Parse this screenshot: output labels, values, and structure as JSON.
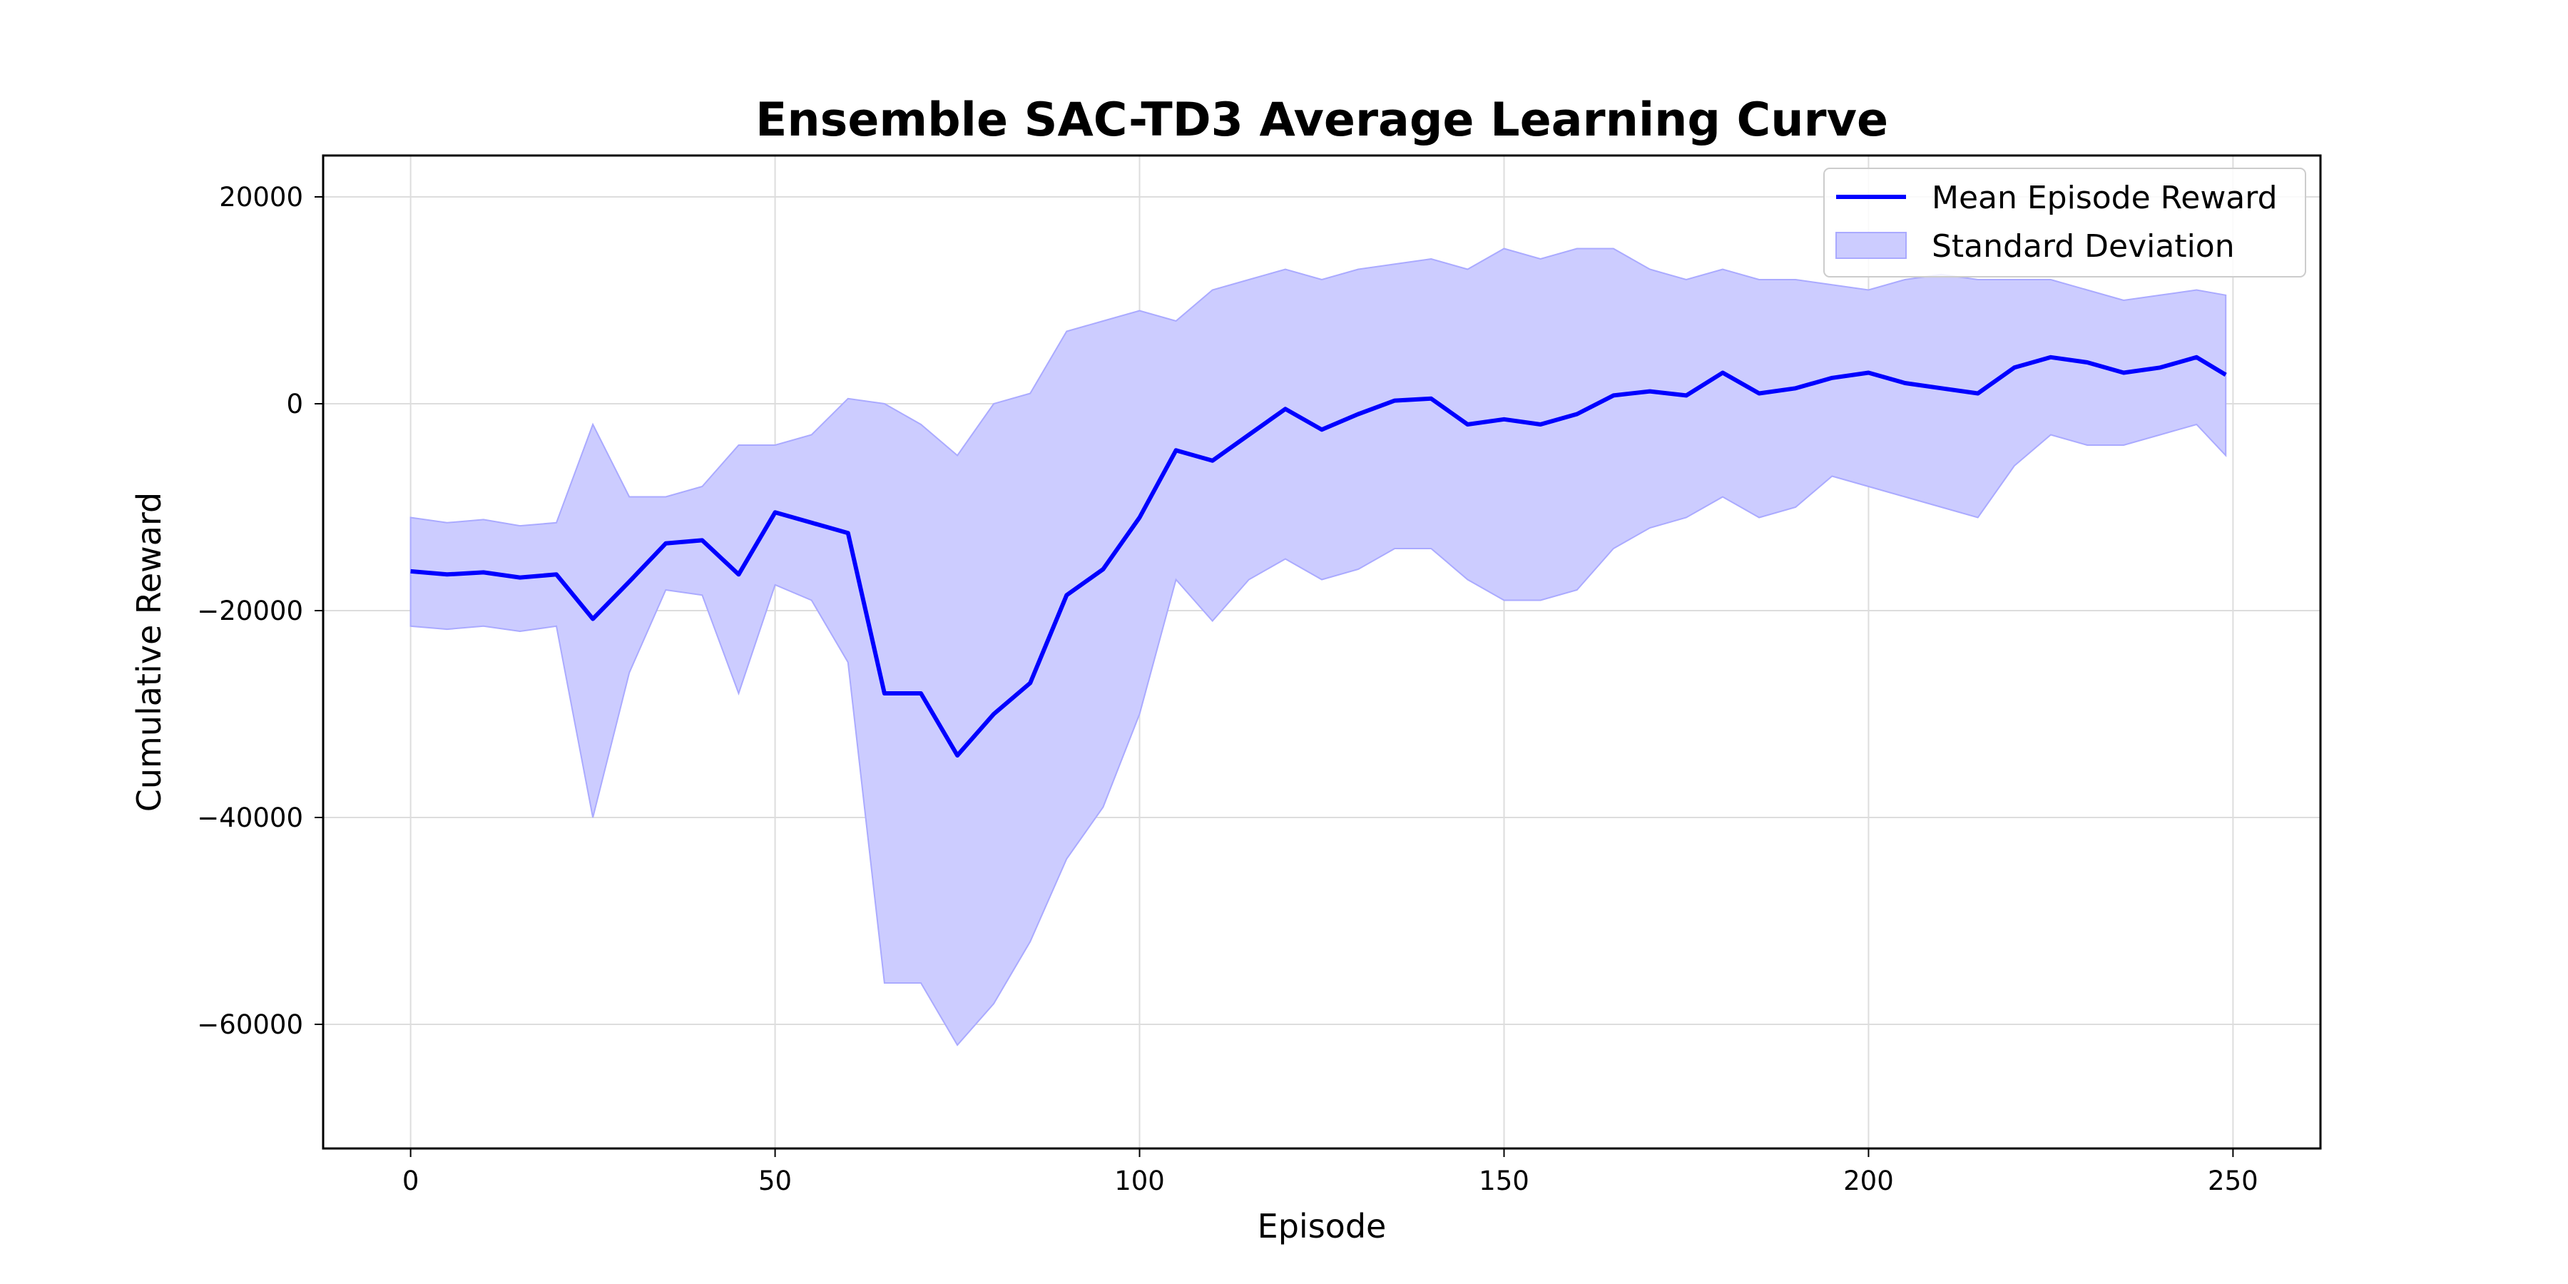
{
  "chart_data": {
    "type": "line",
    "title": "Ensemble SAC-TD3 Average Learning Curve",
    "xlabel": "Episode",
    "ylabel": "Cumulative Reward",
    "xlim": [
      -12,
      262
    ],
    "ylim": [
      -72000,
      24000
    ],
    "xticks": [
      0,
      50,
      100,
      150,
      200,
      250
    ],
    "yticks": [
      -60000,
      -40000,
      -20000,
      0,
      20000
    ],
    "xtick_labels": [
      "0",
      "50",
      "100",
      "150",
      "200",
      "250"
    ],
    "ytick_labels": [
      "−60000",
      "−40000",
      "−20000",
      "0",
      "20000"
    ],
    "grid": true,
    "legend_position": "top-right",
    "colors": {
      "line": "#0000ff",
      "band": "#ccccff",
      "band_edge": "#aaaaff",
      "grid": "#dddddd"
    },
    "series": [
      {
        "name": "Mean Episode Reward",
        "kind": "line",
        "x": [
          0,
          5,
          10,
          15,
          20,
          25,
          30,
          35,
          40,
          45,
          50,
          55,
          60,
          65,
          70,
          75,
          80,
          85,
          90,
          95,
          100,
          105,
          110,
          115,
          120,
          125,
          130,
          135,
          140,
          145,
          150,
          155,
          160,
          165,
          170,
          175,
          180,
          185,
          190,
          195,
          200,
          205,
          210,
          215,
          220,
          225,
          230,
          235,
          240,
          245,
          249
        ],
        "values": [
          -16200,
          -16500,
          -16300,
          -16800,
          -16500,
          -20800,
          -17200,
          -13500,
          -13200,
          -16500,
          -10500,
          -11500,
          -12500,
          -28000,
          -28000,
          -34000,
          -30000,
          -27000,
          -18500,
          -16000,
          -11000,
          -4500,
          -5500,
          -3000,
          -500,
          -2500,
          -1000,
          300,
          500,
          -2000,
          -1500,
          -2000,
          -1000,
          800,
          1200,
          800,
          3000,
          1000,
          1500,
          2500,
          3000,
          2000,
          1500,
          1000,
          3500,
          4500,
          4000,
          3000,
          3500,
          4500,
          2800
        ]
      },
      {
        "name": "Standard Deviation",
        "kind": "band",
        "x": [
          0,
          5,
          10,
          15,
          20,
          25,
          30,
          35,
          40,
          45,
          50,
          55,
          60,
          65,
          70,
          75,
          80,
          85,
          90,
          95,
          100,
          105,
          110,
          115,
          120,
          125,
          130,
          135,
          140,
          145,
          150,
          155,
          160,
          165,
          170,
          175,
          180,
          185,
          190,
          195,
          200,
          205,
          210,
          215,
          220,
          225,
          230,
          235,
          240,
          245,
          249
        ],
        "upper": [
          -11000,
          -11500,
          -11200,
          -11800,
          -11500,
          -2000,
          -9000,
          -9000,
          -8000,
          -4000,
          -4000,
          -3000,
          500,
          0,
          -2000,
          -5000,
          0,
          1000,
          7000,
          8000,
          9000,
          8000,
          11000,
          12000,
          13000,
          12000,
          13000,
          13500,
          14000,
          13000,
          15000,
          14000,
          15000,
          15000,
          13000,
          12000,
          13000,
          12000,
          12000,
          11500,
          11000,
          12000,
          12500,
          12000,
          12000,
          12000,
          11000,
          10000,
          10500,
          11000,
          10500
        ],
        "lower": [
          -21500,
          -21800,
          -21500,
          -22000,
          -21500,
          -40000,
          -26000,
          -18000,
          -18500,
          -28000,
          -17500,
          -19000,
          -25000,
          -56000,
          -56000,
          -62000,
          -58000,
          -52000,
          -44000,
          -39000,
          -30000,
          -17000,
          -21000,
          -17000,
          -15000,
          -17000,
          -16000,
          -14000,
          -14000,
          -17000,
          -19000,
          -19000,
          -18000,
          -14000,
          -12000,
          -11000,
          -9000,
          -11000,
          -10000,
          -7000,
          -8000,
          -9000,
          -10000,
          -11000,
          -6000,
          -3000,
          -4000,
          -4000,
          -3000,
          -2000,
          -5000
        ]
      }
    ]
  }
}
